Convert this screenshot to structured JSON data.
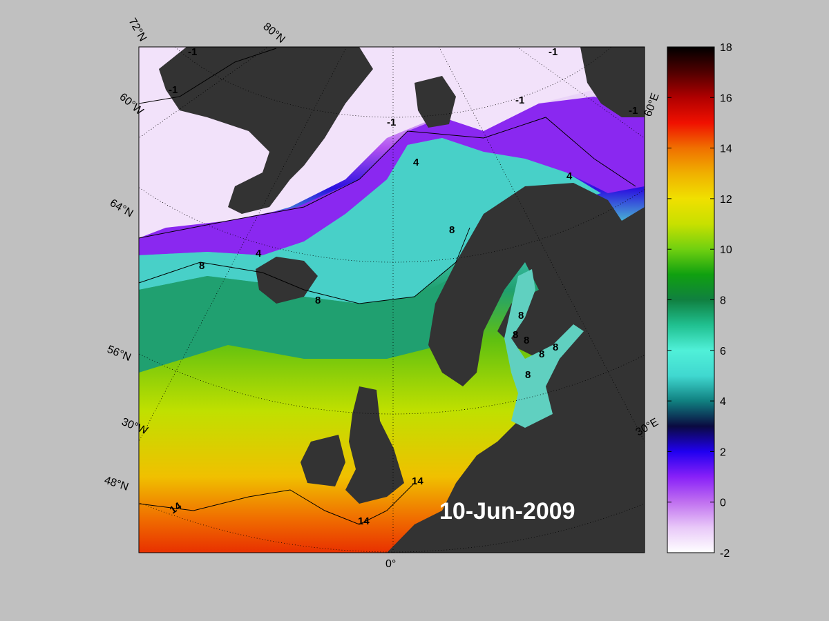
{
  "map": {
    "date_label": "10-Jun-2009",
    "land_color": "#333333",
    "background_color": "#c0c0c0",
    "latitude_labels": [
      "72°N",
      "64°N",
      "56°N",
      "48°N"
    ],
    "longitude_labels": [
      "60°W",
      "30°W",
      "0°",
      "30°E",
      "60°E"
    ],
    "meridian_label_top": "80°N",
    "contours": [
      {
        "level": "-1",
        "labels": 6
      },
      {
        "level": "4",
        "labels": 3
      },
      {
        "level": "8",
        "labels": 9
      },
      {
        "level": "14",
        "labels": 3
      }
    ]
  },
  "colorbar": {
    "ticks": [
      18,
      16,
      14,
      12,
      10,
      8,
      6,
      4,
      2,
      0,
      -2
    ],
    "range": [
      -2,
      18
    ],
    "colors": [
      "#ffffff",
      "#e8c8f8",
      "#c070f0",
      "#8820f8",
      "#2000f0",
      "#0a0a40",
      "#108080",
      "#40d8d0",
      "#50f0d8",
      "#20c090",
      "#108040",
      "#10a010",
      "#70d010",
      "#c8e000",
      "#f0e000",
      "#f0b000",
      "#f07000",
      "#f01000",
      "#b00000",
      "#500000",
      "#000000"
    ]
  }
}
